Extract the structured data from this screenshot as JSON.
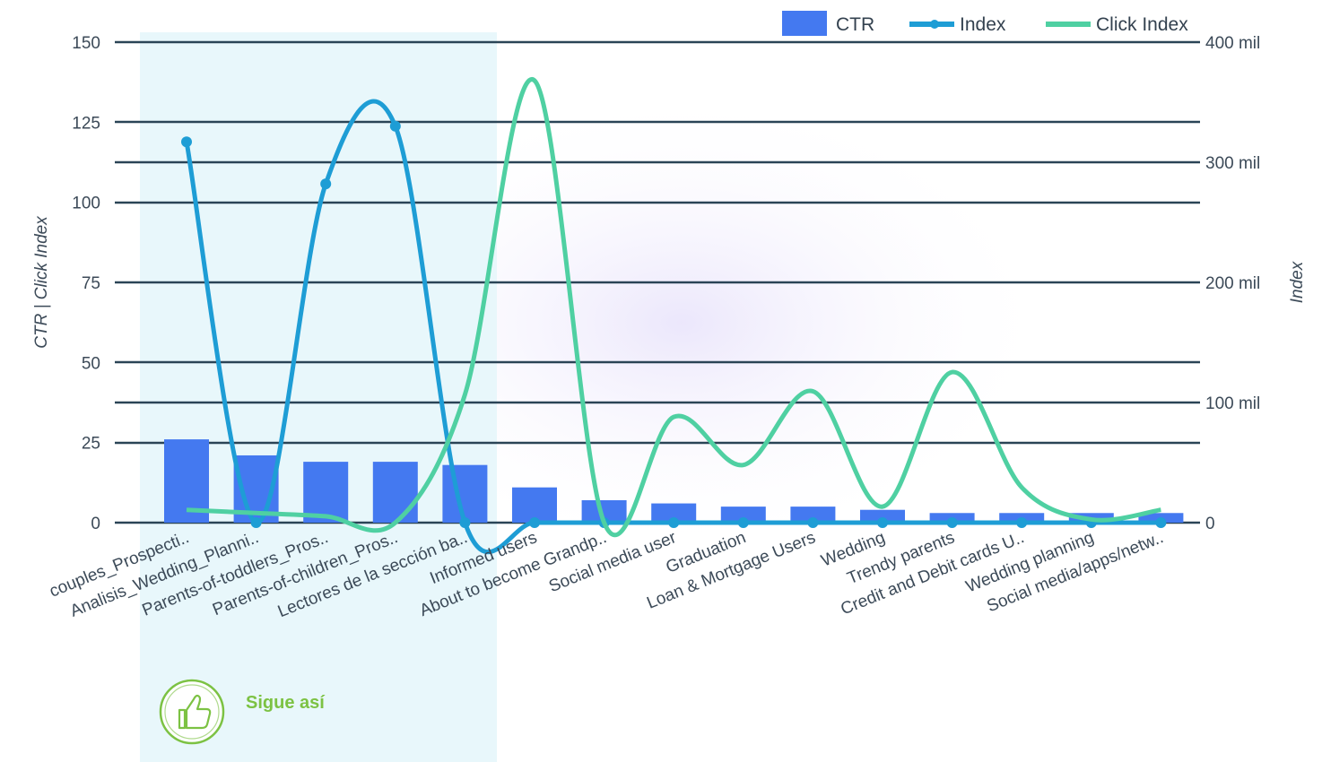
{
  "legend": {
    "ctr": "CTR",
    "index": "Index",
    "click_index": "Click Index"
  },
  "badge": {
    "text": "Sigue así",
    "icon": "thumbs-up-icon"
  },
  "colors": {
    "bar": "#4479f0",
    "index_line": "#1e9dd5",
    "click_index_line": "#4fd0a2",
    "gridline": "#2a4456",
    "highlight_panel": "#e8f7fb",
    "badge": "#7cc243"
  },
  "chart_data": {
    "type": "bar",
    "categories": [
      "couples_Prospecti..",
      "Analisis_Wedding_Planni..",
      "Parents-of-toddlers_Pros..",
      "Parents-of-children_Pros..",
      "Lectores de la sección ba..",
      "Informed users",
      "About to become Grandp..",
      "Social media user",
      "Graduation",
      "Loan & Mortgage Users",
      "Wedding",
      "Trendy parents",
      "Credit and Debit cards U..",
      "Wedding planning",
      "Social media/apps/netw.."
    ],
    "series": [
      {
        "name": "CTR",
        "axis": "left",
        "kind": "bar",
        "values": [
          26,
          21,
          19,
          19,
          18,
          11,
          7,
          6,
          5,
          5,
          4,
          3,
          3,
          3,
          3
        ]
      },
      {
        "name": "Index",
        "axis": "right",
        "kind": "line",
        "values": [
          317000,
          0,
          282000,
          330000,
          0,
          0,
          0,
          0,
          0,
          0,
          0,
          0,
          0,
          0,
          0
        ]
      },
      {
        "name": "Click Index",
        "axis": "left",
        "kind": "line",
        "values": [
          4,
          3,
          2,
          0,
          40,
          138,
          0,
          33,
          18,
          41,
          5,
          47,
          11,
          1,
          4
        ]
      }
    ],
    "xlabel": "",
    "ylabel": "CTR | Click Index",
    "y2label": "Index",
    "ylim": [
      0,
      150
    ],
    "y2lim": [
      0,
      400000
    ],
    "yticks": [
      "0",
      "25",
      "50",
      "75",
      "100",
      "125",
      "150"
    ],
    "y2ticks": [
      "0",
      "100 mil",
      "200 mil",
      "300 mil",
      "400 mil"
    ],
    "legend_position": "top-right",
    "grid": true
  }
}
